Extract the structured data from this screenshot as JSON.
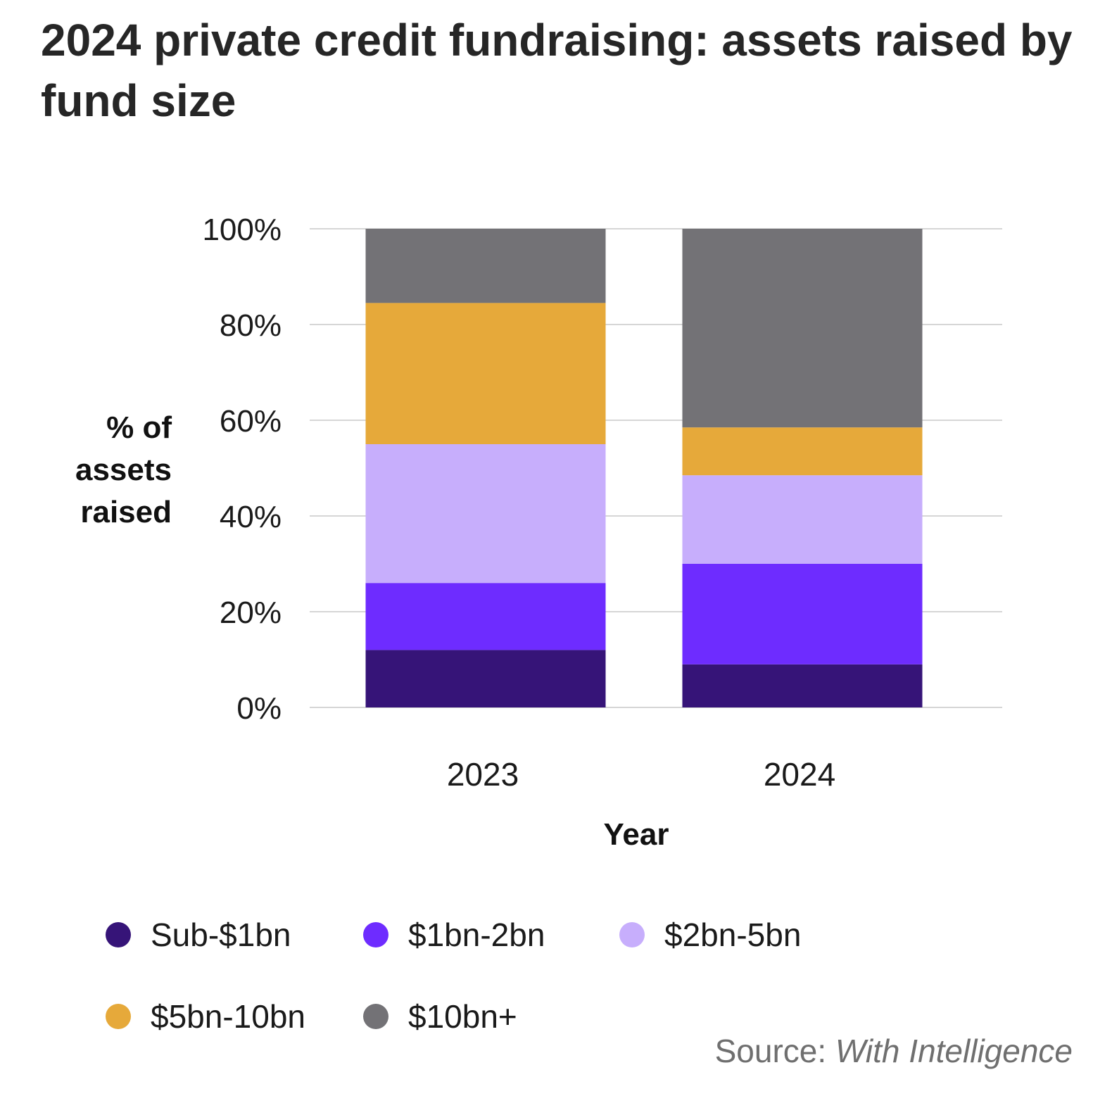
{
  "chart_data": {
    "type": "bar",
    "stacked": true,
    "title": "2024 private credit fundraising: assets raised by fund size",
    "xlabel": "Year",
    "ylabel": "% of assets raised",
    "categories": [
      "2023",
      "2024"
    ],
    "ylim": [
      0,
      100
    ],
    "yticks": [
      "0%",
      "20%",
      "40%",
      "60%",
      "80%",
      "100%"
    ],
    "ytick_values": [
      0,
      20,
      40,
      60,
      80,
      100
    ],
    "grid": true,
    "legend_position": "bottom",
    "series": [
      {
        "name": "Sub-$1bn",
        "color": "#361478",
        "values": [
          12,
          9
        ]
      },
      {
        "name": "$1bn-2bn",
        "color": "#6e2cff",
        "values": [
          14,
          21
        ]
      },
      {
        "name": "$2bn-5bn",
        "color": "#c7aefc",
        "values": [
          29,
          18.5
        ]
      },
      {
        "name": "$5bn-10bn",
        "color": "#e6a93a",
        "values": [
          29.5,
          10
        ]
      },
      {
        "name": "$10bn+",
        "color": "#737276",
        "values": [
          15.5,
          41.5
        ]
      }
    ]
  },
  "source": {
    "prefix": "Source:",
    "name": "With Intelligence"
  }
}
